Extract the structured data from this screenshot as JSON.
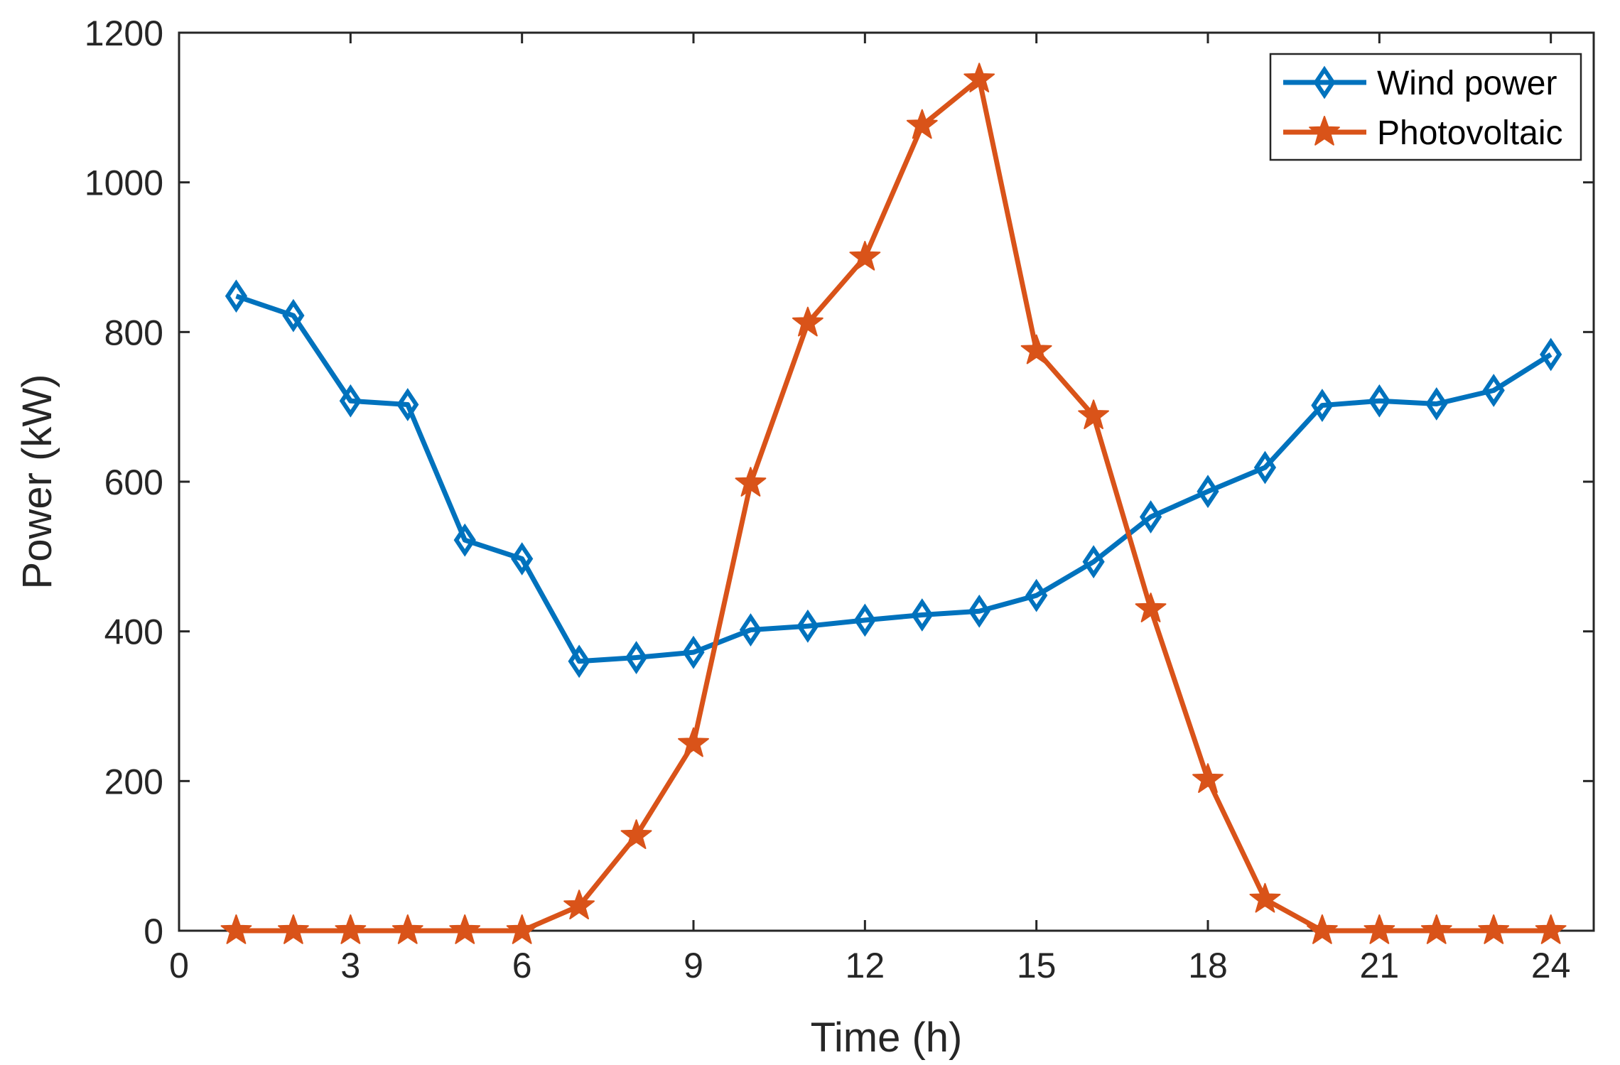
{
  "chart_data": {
    "type": "line",
    "title": "",
    "xlabel": "Time (h)",
    "ylabel": "Power (kW)",
    "xlim": [
      0,
      24.75
    ],
    "ylim": [
      0,
      1200
    ],
    "xticks": [
      0,
      3,
      6,
      9,
      12,
      15,
      18,
      21,
      24
    ],
    "yticks": [
      0,
      200,
      400,
      600,
      800,
      1000,
      1200
    ],
    "grid": false,
    "legend_position": "top-right",
    "x": [
      1,
      2,
      3,
      4,
      5,
      6,
      7,
      8,
      9,
      10,
      11,
      12,
      13,
      14,
      15,
      16,
      17,
      18,
      19,
      20,
      21,
      22,
      23,
      24
    ],
    "series": [
      {
        "name": "Wind power",
        "color": "#0072BD",
        "marker": "diamond",
        "values": [
          848,
          822,
          708,
          703,
          522,
          497,
          360,
          365,
          372,
          402,
          407,
          415,
          422,
          427,
          448,
          493,
          553,
          587,
          619,
          702,
          708,
          704,
          722,
          770
        ]
      },
      {
        "name": "Photovoltaic",
        "color": "#D95319",
        "marker": "star",
        "values": [
          0,
          0,
          0,
          0,
          0,
          0,
          33,
          127,
          250,
          598,
          812,
          900,
          1076,
          1138,
          775,
          688,
          430,
          202,
          42,
          0,
          0,
          0,
          0,
          0
        ]
      }
    ]
  }
}
